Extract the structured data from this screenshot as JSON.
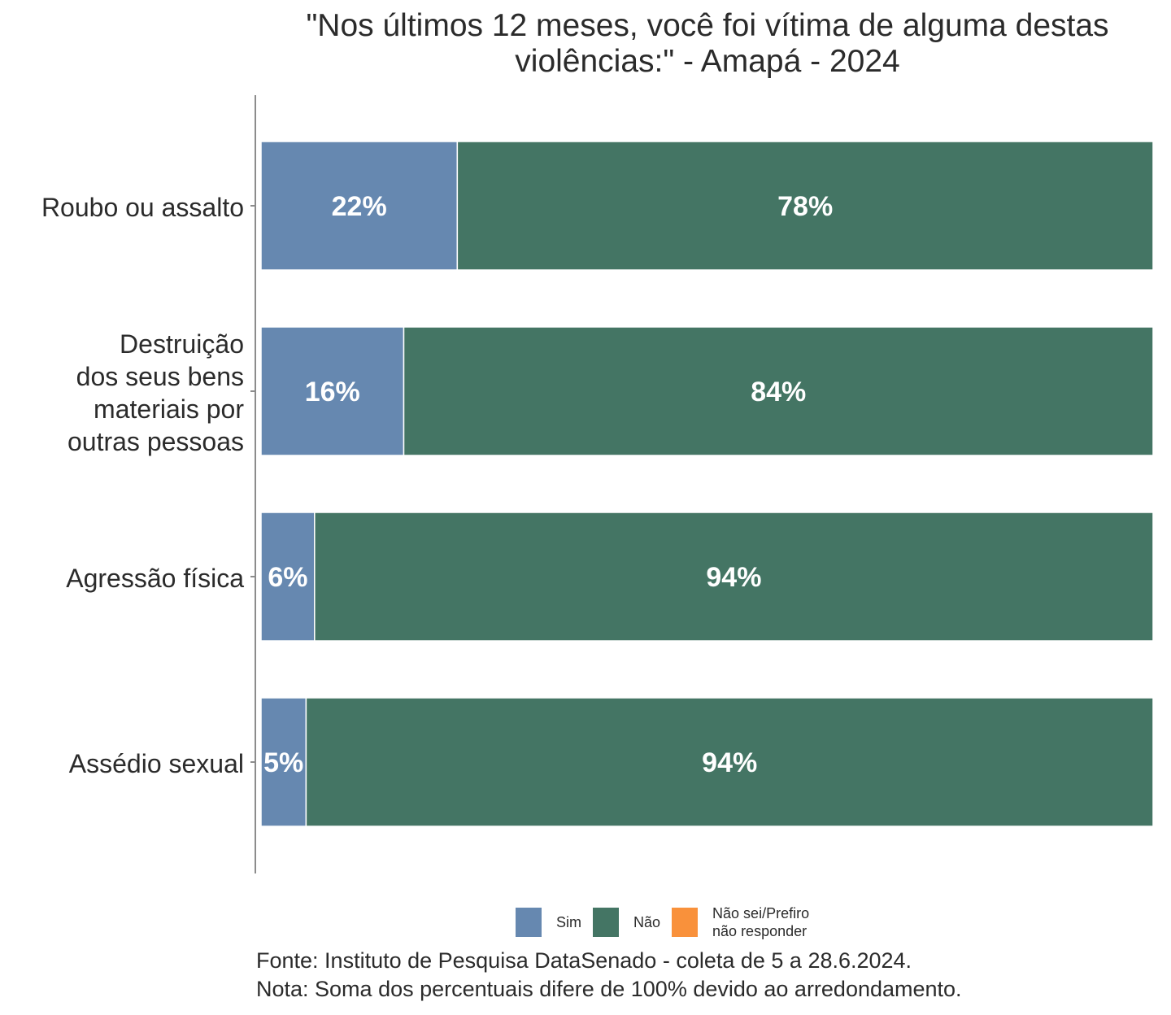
{
  "chart_data": {
    "type": "bar",
    "orientation": "horizontal",
    "stacked": true,
    "title": [
      "\"Nos últimos 12 meses, você foi vítima de alguma destas",
      "violências:\" - Amapá - 2024"
    ],
    "categories": [
      "Roubo ou assalto",
      "Destruição\ndos seus bens\nmateriais por\noutras pessoas",
      "Agressão física",
      "Assédio sexual"
    ],
    "series": [
      {
        "name": "Sim",
        "color": "#6688b0",
        "values": [
          22,
          16,
          6,
          5
        ],
        "labels": [
          "22%",
          "16%",
          "6%",
          "5%"
        ]
      },
      {
        "name": "Não",
        "color": "#447564",
        "values": [
          78,
          84,
          94,
          94
        ],
        "labels": [
          "78%",
          "84%",
          "94%",
          "94%"
        ]
      },
      {
        "name": "Não sei/Prefiro\nnão responder",
        "color": "#f9913b",
        "values": [
          0,
          0,
          0,
          0
        ],
        "labels": [
          "",
          "",
          "",
          ""
        ]
      }
    ],
    "xlim": [
      0,
      100
    ],
    "xlabel": "",
    "ylabel": "",
    "grid": false,
    "legend_position": "bottom"
  },
  "legend": [
    {
      "label": "Sim",
      "color": "#6688b0"
    },
    {
      "label": "Não",
      "color": "#447564"
    },
    {
      "label": "Não sei/Prefiro\nnão responder",
      "color": "#f9913b"
    }
  ],
  "footer": {
    "source": "Fonte: Instituto de Pesquisa DataSenado - coleta de 5 a 28.6.2024.",
    "note": "Nota: Soma dos percentuais difere de 100% devido ao arredondamento."
  }
}
